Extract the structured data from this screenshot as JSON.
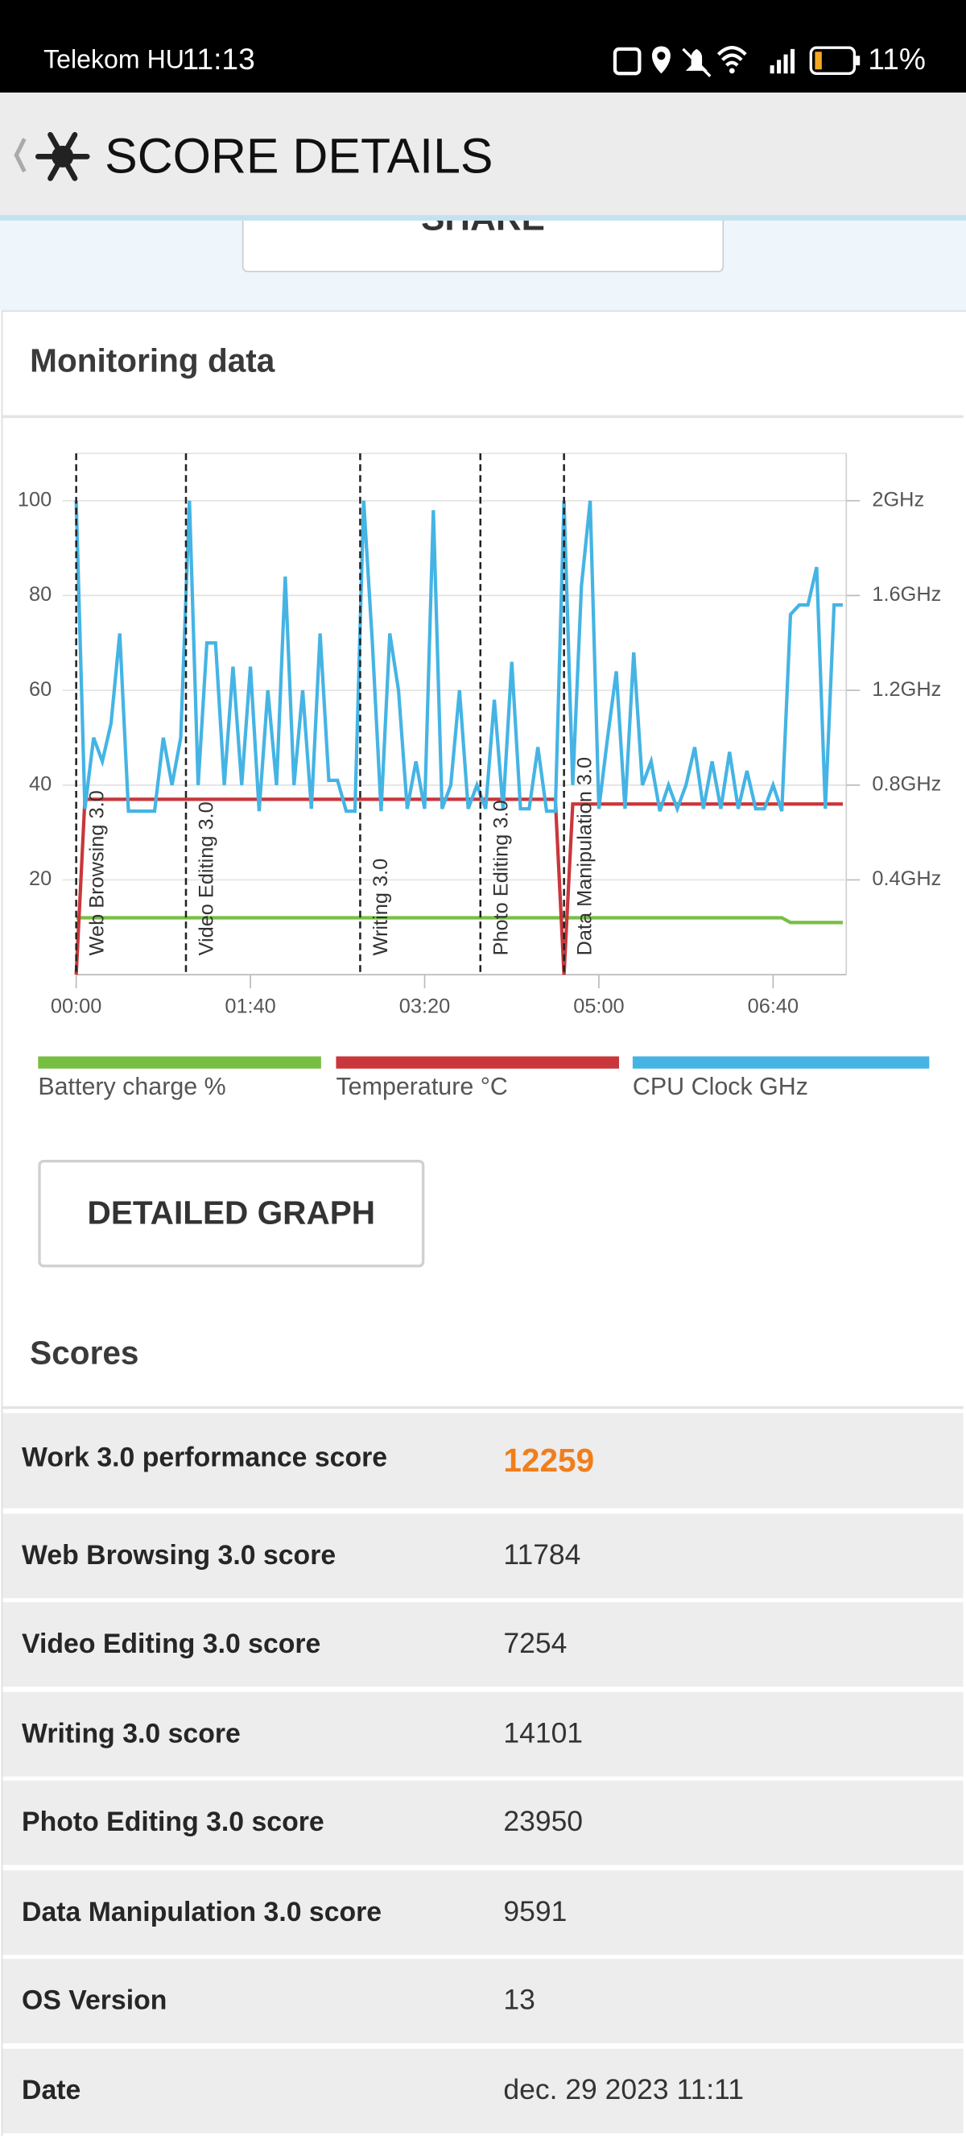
{
  "status_bar": {
    "carrier": "Telekom HU",
    "time": "11:13",
    "battery": "11%"
  },
  "header": {
    "title": "SCORE DETAILS"
  },
  "share_button": {
    "label": "SHARE"
  },
  "monitoring": {
    "title": "Monitoring data"
  },
  "chart_data": {
    "type": "line",
    "x": [
      0,
      5,
      10,
      15,
      20,
      25,
      30,
      35,
      40,
      45,
      50,
      55,
      60,
      65,
      70,
      75,
      80,
      85,
      90,
      95,
      100,
      105,
      110,
      115,
      120,
      125,
      130,
      135,
      140,
      145,
      150,
      155,
      160,
      165,
      170,
      175,
      180,
      185,
      190,
      195,
      200,
      205,
      210,
      215,
      220,
      225,
      230,
      235,
      240,
      245,
      250,
      255,
      260,
      265,
      270,
      275,
      280,
      285,
      290,
      295,
      300,
      305,
      310,
      315,
      320,
      325,
      330,
      335,
      340,
      345,
      350,
      355,
      360,
      365,
      370,
      375,
      380,
      385,
      390,
      395,
      400,
      405,
      410,
      415,
      420,
      425,
      430,
      435,
      440
    ],
    "xlim": [
      0,
      442
    ],
    "xticks": [
      {
        "value": 0,
        "label": "00:00"
      },
      {
        "value": 100,
        "label": "01:40"
      },
      {
        "value": 200,
        "label": "03:20"
      },
      {
        "value": 300,
        "label": "05:00"
      },
      {
        "value": 400,
        "label": "06:40"
      }
    ],
    "ylim": [
      0,
      110
    ],
    "yticks": [
      20,
      40,
      60,
      80,
      100
    ],
    "y2lim": [
      0,
      2.2
    ],
    "y2ticks": [
      {
        "value": 0.4,
        "label": "0.4GHz"
      },
      {
        "value": 0.8,
        "label": "0.8GHz"
      },
      {
        "value": 1.2,
        "label": "1.2GHz"
      },
      {
        "value": 1.6,
        "label": "1.6GHz"
      },
      {
        "value": 2,
        "label": "2GHz"
      }
    ],
    "grid": true,
    "series": [
      {
        "name": "Battery charge %",
        "color": "#77bf43",
        "values": [
          12,
          12,
          12,
          12,
          12,
          12,
          12,
          12,
          12,
          12,
          12,
          12,
          12,
          12,
          12,
          12,
          12,
          12,
          12,
          12,
          12,
          12,
          12,
          12,
          12,
          12,
          12,
          12,
          12,
          12,
          12,
          12,
          12,
          12,
          12,
          12,
          12,
          12,
          12,
          12,
          12,
          12,
          12,
          12,
          12,
          12,
          12,
          12,
          12,
          12,
          12,
          12,
          12,
          12,
          12,
          12,
          12,
          12,
          12,
          12,
          12,
          12,
          12,
          12,
          12,
          12,
          12,
          12,
          12,
          12,
          12,
          12,
          12,
          12,
          12,
          12,
          12,
          12,
          12,
          12,
          12,
          12,
          11,
          11,
          11,
          11,
          11,
          11,
          11
        ]
      },
      {
        "name": "Temperature °C",
        "color": "#c9373b",
        "values": [
          0,
          37,
          37,
          37,
          37,
          37,
          37,
          37,
          37,
          37,
          37,
          37,
          37,
          37,
          37,
          37,
          37,
          37,
          37,
          37,
          37,
          37,
          37,
          37,
          37,
          37,
          37,
          37,
          37,
          37,
          37,
          37,
          37,
          37,
          37,
          37,
          37,
          37,
          37,
          37,
          37,
          37,
          37,
          37,
          37,
          37,
          37,
          37,
          37,
          37,
          37,
          37,
          37,
          37,
          37,
          37,
          0,
          36,
          36,
          36,
          36,
          36,
          36,
          36,
          36,
          36,
          36,
          36,
          36,
          36,
          36,
          36,
          36,
          36,
          36,
          36,
          36,
          36,
          36,
          36,
          36,
          36,
          36,
          36,
          36,
          36,
          36,
          36,
          36
        ]
      },
      {
        "name": "CPU Clock GHz",
        "color": "#45b4e4",
        "axis": "y2",
        "values": [
          2.0,
          0.7,
          1.0,
          0.9,
          1.06,
          1.44,
          0.69,
          0.69,
          0.69,
          0.69,
          1.0,
          0.8,
          1.0,
          2.0,
          0.8,
          1.4,
          1.4,
          0.8,
          1.3,
          0.8,
          1.3,
          0.69,
          1.2,
          0.8,
          1.68,
          0.8,
          1.2,
          0.7,
          1.44,
          0.82,
          0.82,
          0.69,
          0.69,
          2.0,
          1.4,
          0.69,
          1.44,
          1.2,
          0.7,
          0.9,
          0.7,
          1.96,
          0.7,
          0.8,
          1.2,
          0.7,
          0.8,
          0.7,
          1.16,
          0.7,
          1.32,
          0.7,
          0.7,
          0.96,
          0.69,
          0.69,
          2.0,
          0.8,
          1.64,
          2.0,
          0.7,
          1.0,
          1.28,
          0.7,
          1.36,
          0.8,
          0.9,
          0.69,
          0.8,
          0.7,
          0.8,
          0.96,
          0.7,
          0.9,
          0.7,
          0.94,
          0.7,
          0.86,
          0.7,
          0.7,
          0.8,
          0.69,
          1.52,
          1.56,
          1.56,
          1.72,
          0.7,
          1.56,
          1.56
        ]
      }
    ],
    "annotations": [
      {
        "x": 0,
        "label": "Web Browsing 3.0"
      },
      {
        "x": 63,
        "label": "Video Editing 3.0"
      },
      {
        "x": 163,
        "label": "Writing 3.0"
      },
      {
        "x": 232,
        "label": "Photo Editing 3.0"
      },
      {
        "x": 280,
        "label": "Data Manipulation 3.0"
      }
    ]
  },
  "detailed_button": {
    "label": "DETAILED GRAPH"
  },
  "scores": {
    "title": "Scores",
    "rows": [
      [
        "Work 3.0 performance score",
        12259
      ],
      [
        "Web Browsing 3.0 score",
        11784
      ],
      [
        "Video Editing 3.0 score",
        7254
      ],
      [
        "Writing 3.0 score",
        14101
      ],
      [
        "Photo Editing 3.0 score",
        23950
      ],
      [
        "Data Manipulation 3.0 score",
        9591
      ],
      [
        "OS Version",
        13
      ],
      [
        "Date",
        "dec. 29 2023 11:11"
      ]
    ]
  }
}
